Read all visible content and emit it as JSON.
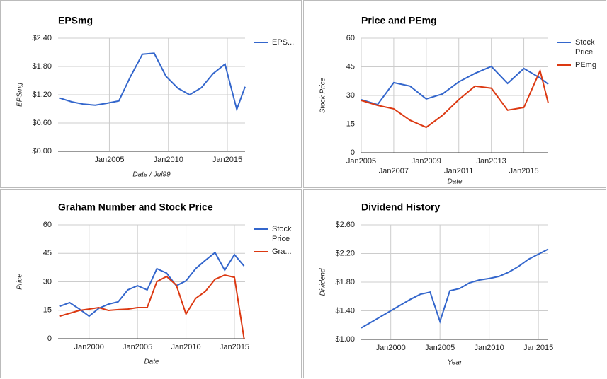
{
  "chart_data": [
    {
      "type": "line",
      "title": "EPSmg",
      "xlabel": "Date / Jul99",
      "ylabel": "EPSmg",
      "x": [
        2000.8,
        2001.8,
        2002.8,
        2003.8,
        2004.8,
        2005.8,
        2006.8,
        2007.8,
        2008.8,
        2009.8,
        2010.8,
        2011.8,
        2012.8,
        2013.8,
        2014.8,
        2015.8,
        2016.5
      ],
      "series": [
        {
          "name": "EPS...",
          "color": "#3366cc",
          "values": [
            1.13,
            1.05,
            1.0,
            0.98,
            1.02,
            1.07,
            1.59,
            2.06,
            2.08,
            1.59,
            1.34,
            1.2,
            1.35,
            1.65,
            1.85,
            0.89,
            1.37
          ]
        }
      ],
      "xlim": [
        2000.65,
        2016.5
      ],
      "xticks": [
        {
          "value": 2005,
          "label": "Jan2005"
        },
        {
          "value": 2010,
          "label": "Jan2010"
        },
        {
          "value": 2015,
          "label": "Jan2015"
        }
      ],
      "ylim": [
        0,
        2.4
      ],
      "yticks": [
        {
          "value": 0,
          "label": "$0.00"
        },
        {
          "value": 0.6,
          "label": "$0.60"
        },
        {
          "value": 1.2,
          "label": "$1.20"
        },
        {
          "value": 1.8,
          "label": "$1.80"
        },
        {
          "value": 2.4,
          "label": "$2.40"
        }
      ],
      "grid": true
    },
    {
      "type": "line",
      "title": "Price and PEmg",
      "xlabel": "Date",
      "ylabel": "Stock Price",
      "x": [
        2005,
        2006,
        2007,
        2008,
        2009,
        2010,
        2011,
        2012,
        2013,
        2014,
        2015,
        2016,
        2016.5
      ],
      "series": [
        {
          "name": "Stock Price",
          "color": "#3366cc",
          "values": [
            27.8,
            25.2,
            36.7,
            34.9,
            28.2,
            30.8,
            37.1,
            41.6,
            45.2,
            36.3,
            44.1,
            39.2,
            35.9
          ]
        },
        {
          "name": "PEmg",
          "color": "#dc3912",
          "values": [
            27.4,
            24.8,
            23.0,
            17.0,
            13.3,
            19.6,
            27.8,
            34.9,
            33.8,
            22.3,
            23.7,
            43.0,
            26.0
          ]
        }
      ],
      "xlim": [
        2005,
        2016.5
      ],
      "xticks": [
        {
          "value": 2005,
          "label": "Jan2005"
        },
        {
          "value": 2007,
          "label": "Jan2007"
        },
        {
          "value": 2009,
          "label": "Jan2009"
        },
        {
          "value": 2011,
          "label": "Jan2011"
        },
        {
          "value": 2013,
          "label": "Jan2013"
        },
        {
          "value": 2015,
          "label": "Jan2015"
        }
      ],
      "ylim": [
        0,
        60
      ],
      "yticks": [
        0,
        15,
        30,
        45,
        60
      ],
      "grid": true
    },
    {
      "type": "line",
      "title": "Graham Number and Stock Price",
      "xlabel": "Date",
      "ylabel": "Price",
      "x": [
        1997,
        1998,
        1999,
        2000,
        2001,
        2002,
        2003,
        2004,
        2005,
        2006,
        2007,
        2008,
        2009,
        2010,
        2011,
        2012,
        2013,
        2014,
        2015,
        2016
      ],
      "series": [
        {
          "name": "Stock Price",
          "color": "#3366cc",
          "values": [
            17.1,
            19.0,
            15.6,
            11.9,
            16.0,
            18.2,
            19.4,
            25.7,
            27.9,
            25.7,
            36.9,
            34.6,
            27.9,
            30.5,
            36.9,
            41.3,
            45.4,
            36.1,
            44.3,
            38.3
          ]
        },
        {
          "name": "Gra...",
          "color": "#dc3912",
          "values": [
            11.9,
            13.4,
            14.9,
            15.6,
            16.4,
            14.9,
            15.3,
            15.6,
            16.4,
            16.4,
            30.1,
            32.8,
            28.3,
            13.0,
            21.2,
            24.9,
            31.3,
            33.5,
            32.4,
            0
          ]
        }
      ],
      "xlim": [
        1996.8,
        2016.1
      ],
      "xticks": [
        {
          "value": 2000,
          "label": "Jan2000"
        },
        {
          "value": 2005,
          "label": "Jan2005"
        },
        {
          "value": 2010,
          "label": "Jan2010"
        },
        {
          "value": 2015,
          "label": "Jan2015"
        }
      ],
      "ylim": [
        0,
        60
      ],
      "yticks": [
        0,
        15,
        30,
        45,
        60
      ],
      "grid": true
    },
    {
      "type": "line",
      "title": "Dividend History",
      "xlabel": "Year",
      "ylabel": "Dividend",
      "x": [
        1997,
        1998,
        1999,
        2000,
        2001,
        2002,
        2003,
        2004,
        2005,
        2006,
        2007,
        2008,
        2009,
        2010,
        2011,
        2012,
        2013,
        2014,
        2015,
        2016
      ],
      "series": [
        {
          "name": "Dividend",
          "color": "#3366cc",
          "values": [
            1.16,
            1.24,
            1.32,
            1.4,
            1.48,
            1.56,
            1.63,
            1.66,
            1.25,
            1.68,
            1.71,
            1.79,
            1.83,
            1.85,
            1.88,
            1.94,
            2.02,
            2.12,
            2.19,
            2.26
          ]
        }
      ],
      "xlim": [
        1997,
        2016
      ],
      "xticks": [
        {
          "value": 2000,
          "label": "Jan2000"
        },
        {
          "value": 2005,
          "label": "Jan2005"
        },
        {
          "value": 2010,
          "label": "Jan2010"
        },
        {
          "value": 2015,
          "label": "Jan2015"
        }
      ],
      "ylim": [
        1.0,
        2.6
      ],
      "yticks": [
        {
          "value": 1.0,
          "label": "$1.00"
        },
        {
          "value": 1.4,
          "label": "$1.40"
        },
        {
          "value": 1.8,
          "label": "$1.80"
        },
        {
          "value": 2.2,
          "label": "$2.20"
        },
        {
          "value": 2.6,
          "label": "$2.60"
        }
      ],
      "grid": true,
      "legend": "none"
    }
  ]
}
